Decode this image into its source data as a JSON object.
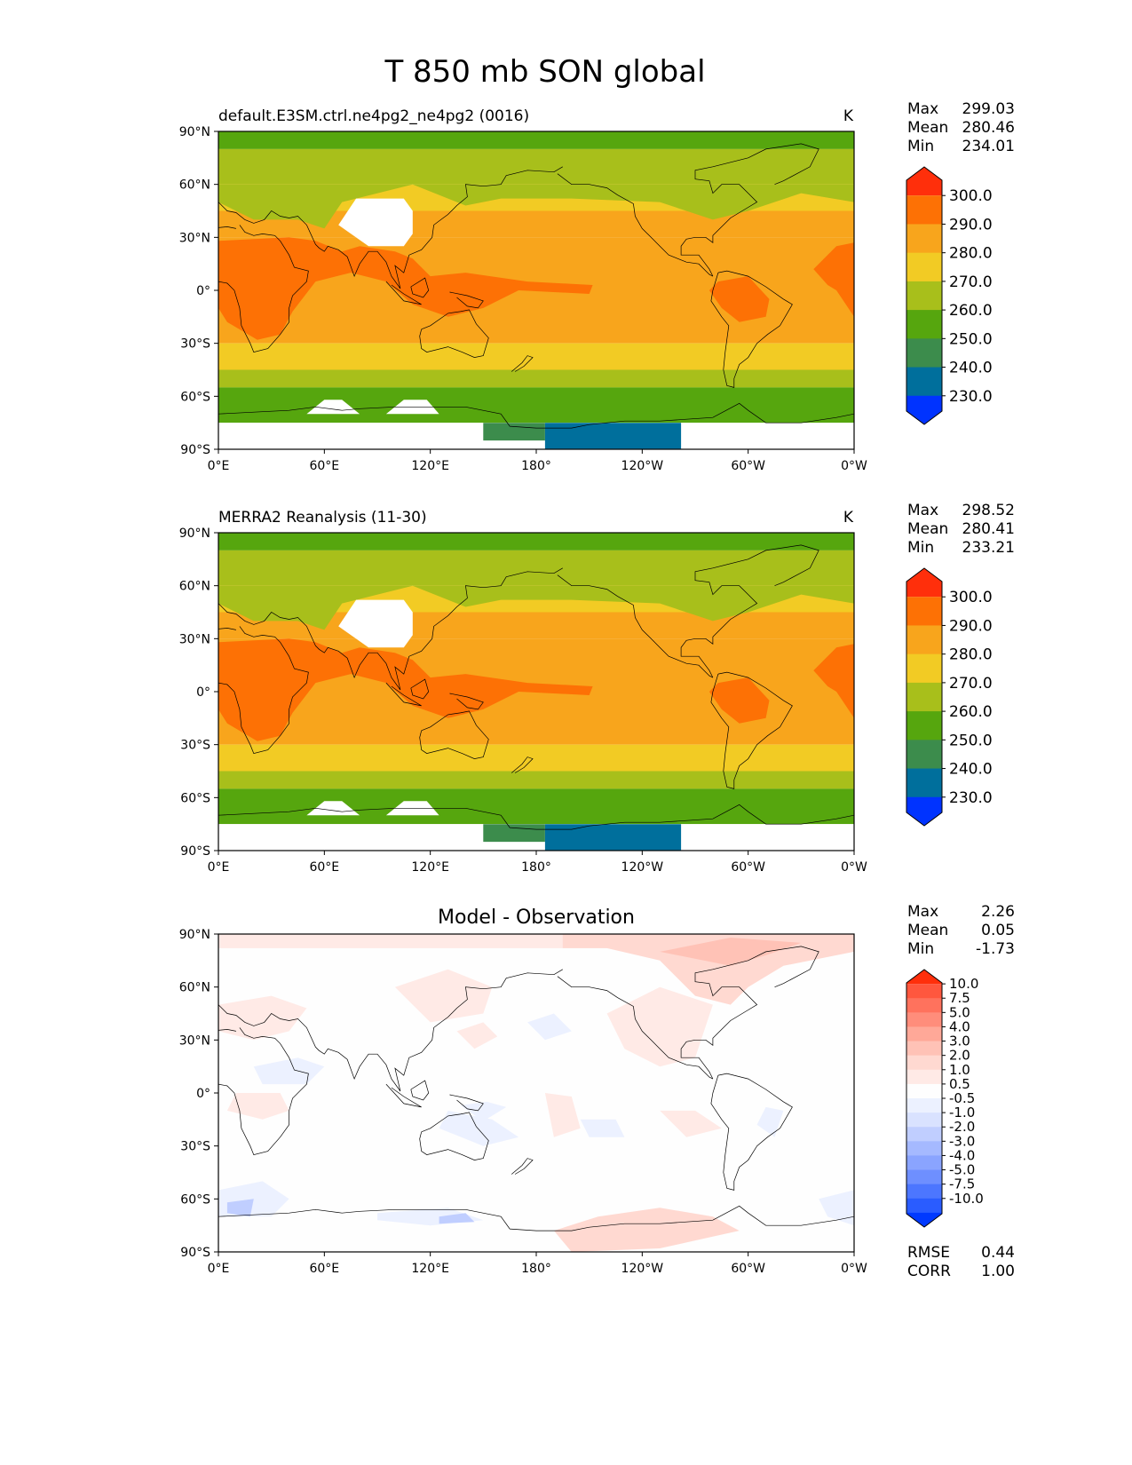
{
  "figure": {
    "title": "T 850 mb SON global"
  },
  "colors": {
    "abs_levels": [
      "#0033ff",
      "#006f9c",
      "#3c8c4c",
      "#56a60e",
      "#a8bf1b",
      "#f2cb24",
      "#f8a51c",
      "#fd7105",
      "#ff2f0b"
    ],
    "diff_levels": [
      "#0039ff",
      "#2a5cff",
      "#4c76ff",
      "#6e8fff",
      "#8aa4ff",
      "#a5b9ff",
      "#c0ceff",
      "#d9e2ff",
      "#ecf1ff",
      "#fefefe",
      "#ffeae6",
      "#ffd9d1",
      "#ffc2b6",
      "#ffa898",
      "#ff8d7b",
      "#ff725d",
      "#ff573e",
      "#ff2f0b"
    ],
    "missing": "#ffffff",
    "coast": "#000000"
  },
  "x_ticks": [
    "0°E",
    "60°E",
    "120°E",
    "180°",
    "120°W",
    "60°W",
    "0°W"
  ],
  "y_ticks": [
    "90°N",
    "60°N",
    "30°N",
    "0°",
    "30°S",
    "60°S",
    "90°S"
  ],
  "panels": [
    {
      "id": "test",
      "title_left": "default.E3SM.ctrl.ne4pg2_ne4pg2 (0016)",
      "title_center": "",
      "units": "K",
      "stats": [
        {
          "label": "Max",
          "value": "299.03"
        },
        {
          "label": "Mean",
          "value": "280.46"
        },
        {
          "label": "Min",
          "value": "234.01"
        }
      ],
      "colorbar_labels": [
        "300.0",
        "290.0",
        "280.0",
        "270.0",
        "260.0",
        "250.0",
        "240.0",
        "230.0"
      ],
      "extra_stats": []
    },
    {
      "id": "ref",
      "title_left": "MERRA2 Reanalysis (11-30)",
      "title_center": "",
      "units": "K",
      "stats": [
        {
          "label": "Max",
          "value": "298.52"
        },
        {
          "label": "Mean",
          "value": "280.41"
        },
        {
          "label": "Min",
          "value": "233.21"
        }
      ],
      "colorbar_labels": [
        "300.0",
        "290.0",
        "280.0",
        "270.0",
        "260.0",
        "250.0",
        "240.0",
        "230.0"
      ],
      "extra_stats": []
    },
    {
      "id": "diff",
      "title_left": "",
      "title_center": "Model - Observation",
      "units": "",
      "stats": [
        {
          "label": "Max",
          "value": "2.26"
        },
        {
          "label": "Mean",
          "value": "0.05"
        },
        {
          "label": "Min",
          "value": "-1.73"
        }
      ],
      "colorbar_labels": [
        "10.0",
        "7.5",
        "5.0",
        "4.0",
        "3.0",
        "2.0",
        "1.0",
        "0.5",
        "-0.5",
        "-1.0",
        "-2.0",
        "-3.0",
        "-4.0",
        "-5.0",
        "-7.5",
        "-10.0"
      ],
      "extra_stats": [
        {
          "label": "RMSE",
          "value": "0.44"
        },
        {
          "label": "CORR",
          "value": "1.00"
        }
      ]
    }
  ],
  "chart_data": [
    {
      "type": "heatmap",
      "title": "default.E3SM.ctrl.ne4pg2_ne4pg2 (0016)",
      "units": "K",
      "x_range": [
        0,
        360
      ],
      "y_range": [
        -90,
        90
      ],
      "levels": [
        230,
        240,
        250,
        260,
        270,
        280,
        290,
        300
      ],
      "approx_zonal_bands": [
        {
          "lat": [
            80,
            90
          ],
          "value": 255
        },
        {
          "lat": [
            60,
            80
          ],
          "value": 262
        },
        {
          "lat": [
            45,
            60
          ],
          "value": 268
        },
        {
          "lat": [
            30,
            45
          ],
          "value": 275
        },
        {
          "lat": [
            -30,
            30
          ],
          "value": 285
        },
        {
          "lat": [
            -45,
            -30
          ],
          "value": 275
        },
        {
          "lat": [
            -55,
            -45
          ],
          "value": 265
        },
        {
          "lat": [
            -75,
            -55
          ],
          "value": 255
        },
        {
          "lat": [
            -90,
            -75
          ],
          "value": 235
        }
      ],
      "stats": {
        "max": 299.03,
        "mean": 280.46,
        "min": 234.01
      }
    },
    {
      "type": "heatmap",
      "title": "MERRA2 Reanalysis (11-30)",
      "units": "K",
      "x_range": [
        0,
        360
      ],
      "y_range": [
        -90,
        90
      ],
      "levels": [
        230,
        240,
        250,
        260,
        270,
        280,
        290,
        300
      ],
      "approx_zonal_bands": [
        {
          "lat": [
            80,
            90
          ],
          "value": 255
        },
        {
          "lat": [
            60,
            80
          ],
          "value": 262
        },
        {
          "lat": [
            45,
            60
          ],
          "value": 268
        },
        {
          "lat": [
            30,
            45
          ],
          "value": 275
        },
        {
          "lat": [
            -30,
            30
          ],
          "value": 285
        },
        {
          "lat": [
            -45,
            -30
          ],
          "value": 275
        },
        {
          "lat": [
            -55,
            -45
          ],
          "value": 265
        },
        {
          "lat": [
            -75,
            -55
          ],
          "value": 255
        },
        {
          "lat": [
            -90,
            -75
          ],
          "value": 235
        }
      ],
      "stats": {
        "max": 298.52,
        "mean": 280.41,
        "min": 233.21
      }
    },
    {
      "type": "heatmap",
      "title": "Model - Observation",
      "x_range": [
        0,
        360
      ],
      "y_range": [
        -90,
        90
      ],
      "levels": [
        -10,
        -7.5,
        -5,
        -4,
        -3,
        -2,
        -1,
        -0.5,
        0.5,
        1,
        2,
        3,
        4,
        5,
        7.5,
        10
      ],
      "stats": {
        "max": 2.26,
        "mean": 0.05,
        "min": -1.73,
        "rmse": 0.44,
        "corr": 1.0
      }
    }
  ]
}
